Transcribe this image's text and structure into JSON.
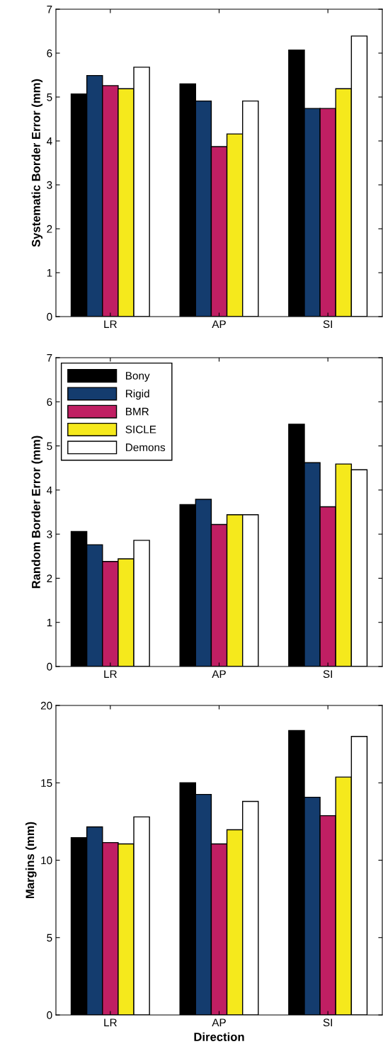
{
  "chart_data": [
    {
      "type": "bar",
      "ylabel": "Systematic Border Error (mm)",
      "categories": [
        "LR",
        "AP",
        "SI"
      ],
      "ylim": [
        0,
        7
      ],
      "yticks": [
        0,
        1,
        2,
        3,
        4,
        5,
        6,
        7
      ],
      "grid": false,
      "legend": false,
      "series": [
        {
          "color": "#000000",
          "values": [
            5.07,
            5.3,
            6.07
          ]
        },
        {
          "color": "#143c6e",
          "values": [
            5.49,
            4.91,
            4.74
          ]
        },
        {
          "color": "#c01f63",
          "values": [
            5.26,
            3.87,
            4.74
          ]
        },
        {
          "color": "#f5e91c",
          "values": [
            5.19,
            4.16,
            5.19
          ]
        },
        {
          "color": "#ffffff",
          "values": [
            5.68,
            4.91,
            6.39
          ]
        }
      ]
    },
    {
      "type": "bar",
      "ylabel": "Random Border Error (mm)",
      "categories": [
        "LR",
        "AP",
        "SI"
      ],
      "ylim": [
        0,
        7
      ],
      "yticks": [
        0,
        1,
        2,
        3,
        4,
        5,
        6,
        7
      ],
      "grid": false,
      "legend": "top left",
      "series": [
        {
          "name": "Bony",
          "color": "#000000",
          "values": [
            3.06,
            3.67,
            5.49
          ]
        },
        {
          "name": "Rigid",
          "color": "#143c6e",
          "values": [
            2.76,
            3.79,
            4.62
          ]
        },
        {
          "name": "BMR",
          "color": "#c01f63",
          "values": [
            2.38,
            3.22,
            3.62
          ]
        },
        {
          "name": "SICLE",
          "color": "#f5e91c",
          "values": [
            2.44,
            3.44,
            4.59
          ]
        },
        {
          "name": "Demons",
          "color": "#ffffff",
          "values": [
            2.86,
            3.44,
            4.46
          ]
        }
      ]
    },
    {
      "type": "bar",
      "xlabel": "Direction",
      "ylabel": "Margins (mm)",
      "categories": [
        "LR",
        "AP",
        "SI"
      ],
      "ylim": [
        0,
        20
      ],
      "yticks": [
        0,
        5,
        10,
        15,
        20
      ],
      "grid": false,
      "legend": false,
      "series": [
        {
          "color": "#000000",
          "values": [
            11.45,
            15.0,
            18.38
          ]
        },
        {
          "color": "#143c6e",
          "values": [
            12.15,
            14.25,
            14.07
          ]
        },
        {
          "color": "#c01f63",
          "values": [
            11.14,
            11.05,
            12.88
          ]
        },
        {
          "color": "#f5e91c",
          "values": [
            11.05,
            11.97,
            15.37
          ]
        },
        {
          "color": "#ffffff",
          "values": [
            12.8,
            13.8,
            18.0
          ]
        }
      ]
    }
  ]
}
